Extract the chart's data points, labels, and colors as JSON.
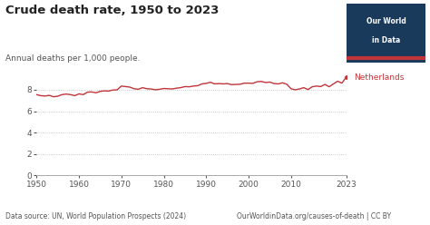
{
  "title": "Crude death rate, 1950 to 2023",
  "subtitle": "Annual deaths per 1,000 people.",
  "footnote_left": "Data source: UN, World Population Prospects (2024)",
  "footnote_right": "OurWorldinData.org/causes-of-death | CC BY",
  "line_color": "#c0353a",
  "label": "Netherlands",
  "xlim": [
    1950,
    2023
  ],
  "ylim": [
    0,
    10.5
  ],
  "yticks": [
    0,
    2,
    4,
    6,
    8
  ],
  "xticks": [
    1950,
    1960,
    1970,
    1980,
    1990,
    2000,
    2010,
    2023
  ],
  "background_color": "#ffffff",
  "logo_bg": "#1a3a5c",
  "logo_line_color": "#c0353a",
  "years": [
    1950,
    1951,
    1952,
    1953,
    1954,
    1955,
    1956,
    1957,
    1958,
    1959,
    1960,
    1961,
    1962,
    1963,
    1964,
    1965,
    1966,
    1967,
    1968,
    1969,
    1970,
    1971,
    1972,
    1973,
    1974,
    1975,
    1976,
    1977,
    1978,
    1979,
    1980,
    1981,
    1982,
    1983,
    1984,
    1985,
    1986,
    1987,
    1988,
    1989,
    1990,
    1991,
    1992,
    1993,
    1994,
    1995,
    1996,
    1997,
    1998,
    1999,
    2000,
    2001,
    2002,
    2003,
    2004,
    2005,
    2006,
    2007,
    2008,
    2009,
    2010,
    2011,
    2012,
    2013,
    2014,
    2015,
    2016,
    2017,
    2018,
    2019,
    2020,
    2021,
    2022,
    2023
  ],
  "values": [
    7.55,
    7.45,
    7.42,
    7.48,
    7.35,
    7.4,
    7.55,
    7.6,
    7.55,
    7.45,
    7.62,
    7.55,
    7.78,
    7.8,
    7.72,
    7.85,
    7.9,
    7.88,
    7.98,
    8.0,
    8.35,
    8.3,
    8.25,
    8.1,
    8.05,
    8.2,
    8.1,
    8.08,
    8.0,
    8.05,
    8.12,
    8.1,
    8.08,
    8.15,
    8.2,
    8.3,
    8.28,
    8.35,
    8.38,
    8.55,
    8.6,
    8.7,
    8.55,
    8.58,
    8.55,
    8.58,
    8.48,
    8.5,
    8.52,
    8.62,
    8.62,
    8.6,
    8.75,
    8.78,
    8.68,
    8.72,
    8.58,
    8.55,
    8.65,
    8.52,
    8.1,
    8.0,
    8.08,
    8.2,
    8.02,
    8.28,
    8.35,
    8.3,
    8.5,
    8.28,
    8.55,
    8.8,
    8.62,
    9.18
  ]
}
